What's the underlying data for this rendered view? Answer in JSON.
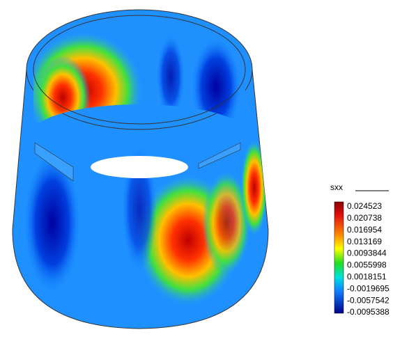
{
  "legend": {
    "title": "sxx",
    "ticks": [
      "0.024523",
      "0.020738",
      "0.016954",
      "0.013169",
      "0.0093844",
      "0.0055998",
      "0.0018151",
      "-0.0019695",
      "-0.0057542",
      "-0.0095388"
    ]
  }
}
